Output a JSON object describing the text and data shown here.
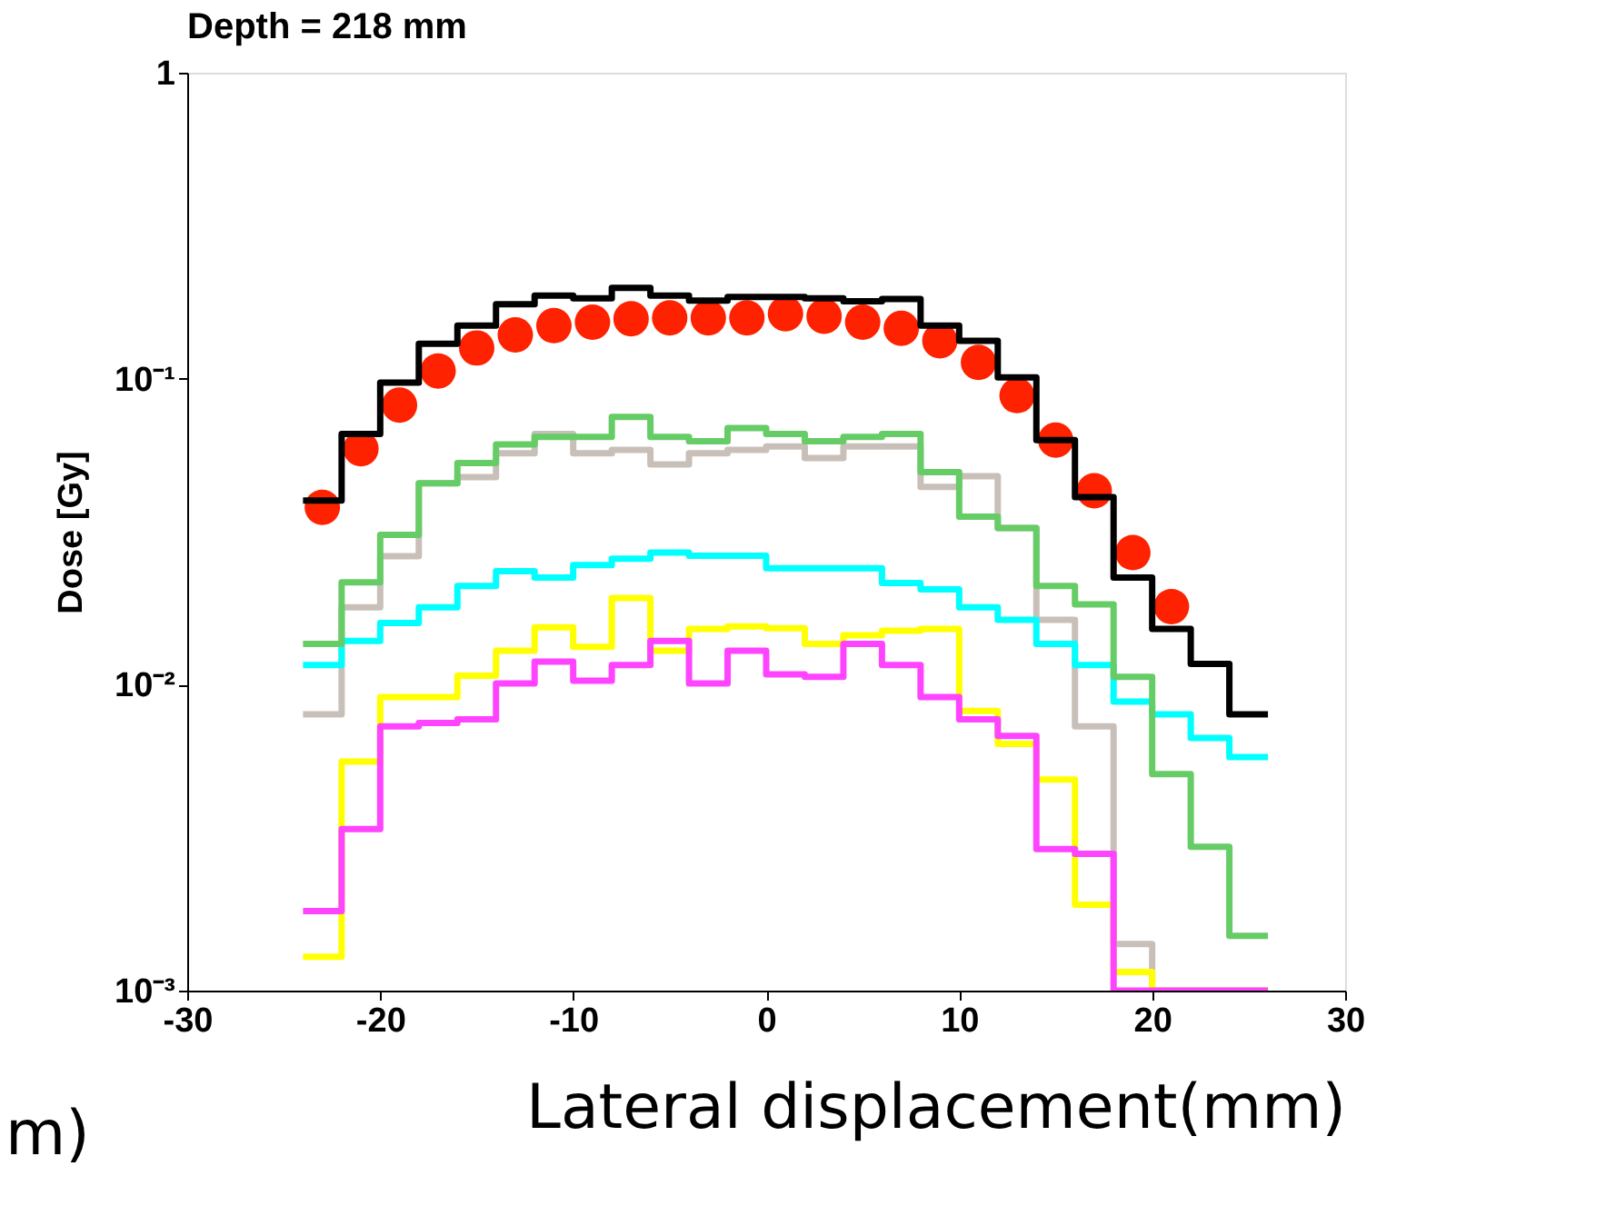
{
  "chart_data": {
    "type": "histogram",
    "title": "Depth = 218  mm",
    "xlabel": "Lateral displacement(mm)",
    "ylabel": "Dose [Gy]",
    "annotations": [
      "m)"
    ],
    "bins": [
      -24,
      -22,
      -20,
      -18,
      -16,
      -14,
      -12,
      -10,
      -8,
      -6,
      -4,
      -2,
      0,
      2,
      4,
      6,
      8,
      10,
      12,
      14,
      16,
      18,
      20,
      22,
      24,
      26
    ],
    "series": [
      {
        "type": "scatter",
        "color": "#ff2200",
        "x": [
          -23,
          -21,
          -19,
          -17,
          -15,
          -13,
          -11,
          -9,
          -7,
          -5,
          -3,
          -1,
          1,
          3,
          5,
          7,
          9,
          11,
          13,
          15,
          17,
          19,
          21
        ],
        "values": [
          0.038,
          0.059,
          0.082,
          0.106,
          0.126,
          0.139,
          0.149,
          0.153,
          0.157,
          0.158,
          0.158,
          0.158,
          0.163,
          0.16,
          0.153,
          0.146,
          0.133,
          0.113,
          0.088,
          0.063,
          0.043,
          0.027,
          0.018
        ]
      },
      {
        "color": "#000000",
        "values": [
          0.04,
          0.066,
          0.097,
          0.13,
          0.149,
          0.175,
          0.187,
          0.183,
          0.198,
          0.187,
          0.18,
          0.185,
          0.185,
          0.183,
          0.179,
          0.182,
          0.149,
          0.133,
          0.101,
          0.063,
          0.041,
          0.0224,
          0.0152,
          0.0117,
          0.008
        ]
      },
      {
        "color": "#c8c0b8",
        "values": [
          0.008,
          0.0179,
          0.0263,
          0.0455,
          0.0477,
          0.057,
          0.066,
          0.057,
          0.0585,
          0.0525,
          0.057,
          0.0585,
          0.06,
          0.055,
          0.06,
          0.06,
          0.0443,
          0.048,
          0.0325,
          0.0163,
          0.0073,
          0.00142,
          0.001,
          0.001,
          0.001
        ]
      },
      {
        "color": "#ffff00",
        "values": [
          0.00129,
          0.0056,
          0.0091,
          0.0091,
          0.0107,
          0.0129,
          0.0154,
          0.0133,
          0.0192,
          0.0129,
          0.0152,
          0.0155,
          0.0153,
          0.0136,
          0.0145,
          0.015,
          0.0152,
          0.0082,
          0.0064,
          0.0049,
          0.00191,
          0.00115,
          0.001,
          0.001,
          0.001
        ]
      },
      {
        "color": "#ff44ff",
        "values": [
          0.00182,
          0.00337,
          0.0073,
          0.0075,
          0.0077,
          0.0101,
          0.0119,
          0.0103,
          0.0116,
          0.0139,
          0.0101,
          0.0129,
          0.0108,
          0.0106,
          0.0136,
          0.0116,
          0.0091,
          0.0077,
          0.0068,
          0.0029,
          0.0028,
          0.001,
          0.001,
          0.001,
          0.001
        ]
      },
      {
        "color": "#00ffff",
        "values": [
          0.0116,
          0.0139,
          0.0159,
          0.0179,
          0.021,
          0.0235,
          0.0224,
          0.0246,
          0.0258,
          0.027,
          0.0264,
          0.0264,
          0.024,
          0.024,
          0.024,
          0.0215,
          0.0205,
          0.0179,
          0.0163,
          0.0136,
          0.0116,
          0.0088,
          0.008,
          0.0067,
          0.0058
        ]
      },
      {
        "color": "#66cc66",
        "values": [
          0.0136,
          0.0216,
          0.0309,
          0.0455,
          0.053,
          0.061,
          0.0645,
          0.0645,
          0.075,
          0.0645,
          0.0625,
          0.069,
          0.066,
          0.0625,
          0.0645,
          0.066,
          0.0495,
          0.0354,
          0.0325,
          0.021,
          0.0183,
          0.0106,
          0.0051,
          0.00295,
          0.00151
        ]
      }
    ],
    "xlim": [
      -30,
      30
    ],
    "xticks": [
      -30,
      -20,
      -10,
      0,
      10,
      20,
      30
    ],
    "ylim": [
      0.001,
      1
    ],
    "yticks": [
      {
        "value": 0.001,
        "label": "10⁻³"
      },
      {
        "value": 0.01,
        "label": "10⁻²"
      },
      {
        "value": 0.1,
        "label": "10⁻¹"
      },
      1
    ],
    "log": "y",
    "grid": false
  }
}
